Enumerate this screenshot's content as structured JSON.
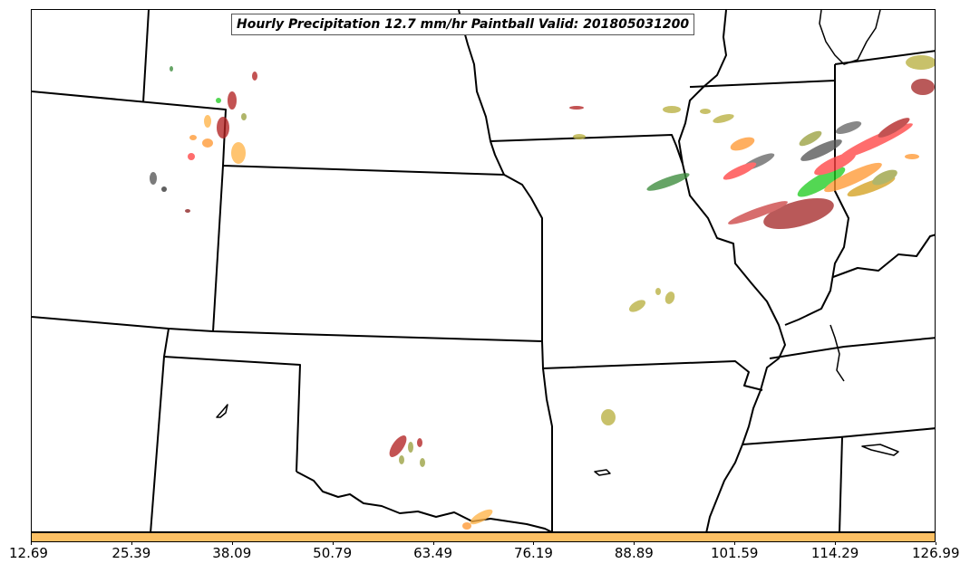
{
  "title": "Hourly Precipitation 12.7 mm/hr Paintball Valid: 201805031200",
  "colorbar": {
    "color": "#fcc064",
    "ticks": [
      "12.69",
      "25.39",
      "38.09",
      "50.79",
      "63.49",
      "76.19",
      "88.89",
      "101.59",
      "114.29",
      "126.99"
    ]
  },
  "colors": {
    "ensemble_member_colors": [
      "#b22222",
      "#ff4444",
      "#ff9933",
      "#ffb347",
      "#d4a020",
      "#9aa040",
      "#b8b040",
      "#3a8a3a",
      "#22cc22",
      "#555555",
      "#8b2020"
    ]
  },
  "map": {
    "region": "Central United States",
    "boundaries": "state-outlines",
    "background": "#ffffff"
  }
}
